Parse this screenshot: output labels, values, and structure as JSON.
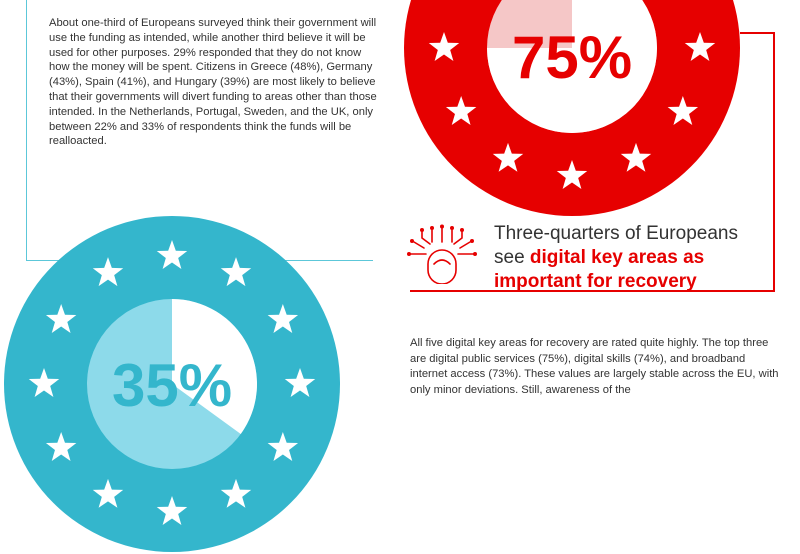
{
  "left_block": {
    "paragraph": "About one-third of Europeans surveyed think their government will use the funding as intended, while another third believe it will be used for other purposes. 29% responded that they do not know how the money will be spent. Citizens in Greece (48%), Germany (43%), Spain (41%), and Hungary (39%) are most likely to believe that their governments will divert funding to areas other than those intended. In the Netherlands, Portugal, Sweden, and the UK, only between 22% and 33% of respondents think the funds will be realloacted."
  },
  "stat_red": {
    "label": "75%",
    "value": 75,
    "color": "#e60000",
    "light": "#f5c7c7"
  },
  "stat_cyan": {
    "label": "35%",
    "value": 35,
    "color": "#34b6cc",
    "light": "#8ddaea"
  },
  "headline": {
    "line1": "Three-quarters of Europeans",
    "line2_plain": "see ",
    "line2_highlight": "digital key areas as important for recovery"
  },
  "right_block": {
    "paragraph": "All five digital key areas for recovery are rated quite highly. The top three are digital public services (75%), digital skills (74%), and broadband internet access (73%). These values are largely stable across the EU, with only minor deviations. Still, awareness of the"
  },
  "icons": {
    "fingerprint": "touch-fingerprint-icon",
    "star": "star-icon"
  },
  "colors": {
    "accent_red": "#e60000",
    "accent_cyan": "#5cc7d9",
    "text": "#333333"
  }
}
